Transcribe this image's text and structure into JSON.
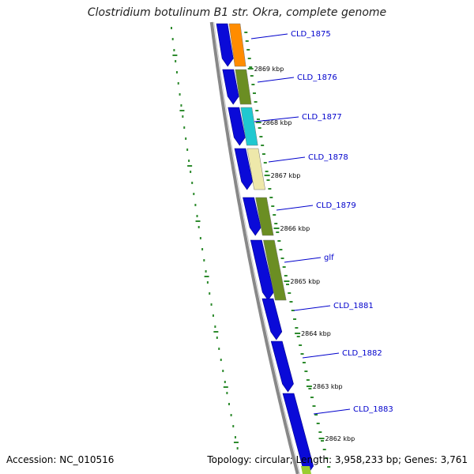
{
  "title": "Clostridium botulinum B1 str. Okra, complete genome",
  "accession_text": "Accession: NC_010516",
  "summary_text": "Topology: circular; Length: 3,958,233 bp; Genes: 3,761",
  "colors": {
    "backbone": "#888888",
    "forward_cds": "#0a0ad8",
    "tick": "#2e8b2e",
    "label": "#0000cc",
    "orange": "#ff8c00",
    "olive": "#6b8e23",
    "cyan": "#20c8d0",
    "khaki": "#eee8aa"
  },
  "scale_labels": [
    "2869 kbp",
    "2868 kbp",
    "2867 kbp",
    "2866 kbp",
    "2865 kbp",
    "2864 kbp",
    "2863 kbp",
    "2862 kbp"
  ],
  "genes": [
    {
      "label": "CLD_1875",
      "feature_color": "orange"
    },
    {
      "label": "CLD_1876",
      "feature_color": "olive"
    },
    {
      "label": "CLD_1877",
      "feature_color": "cyan"
    },
    {
      "label": "CLD_1878",
      "feature_color": "khaki"
    },
    {
      "label": "CLD_1879",
      "feature_color": "olive"
    },
    {
      "label": "glf",
      "feature_color": "olive"
    },
    {
      "label": "CLD_1881",
      "feature_color": "none"
    },
    {
      "label": "CLD_1882",
      "feature_color": "none"
    },
    {
      "label": "CLD_1883",
      "feature_color": "none"
    }
  ]
}
